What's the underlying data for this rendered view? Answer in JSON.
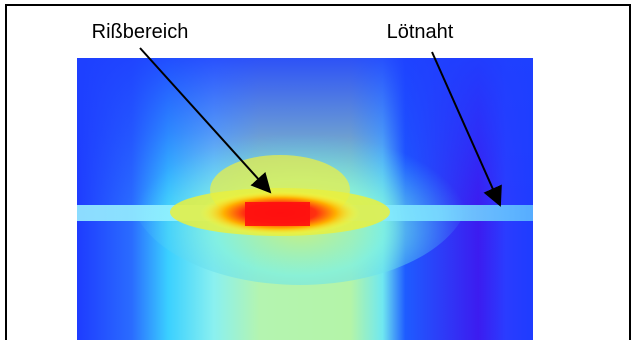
{
  "labels": {
    "crack_area": "Rißbereich",
    "solder_seam": "Lötnaht"
  }
}
